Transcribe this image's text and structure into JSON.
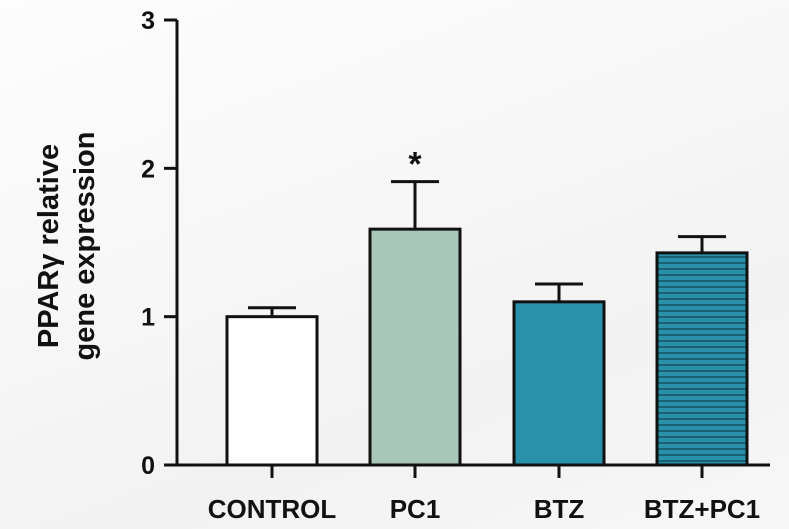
{
  "chart_data": {
    "type": "bar",
    "title": "",
    "xlabel": "",
    "ylabel_lines": [
      "PPARγ relative",
      "gene expression"
    ],
    "ylim": [
      0,
      3
    ],
    "yticks": [
      0,
      1,
      2,
      3
    ],
    "grid": false,
    "categories": [
      "CONTROL",
      "PC1",
      "BTZ",
      "BTZ+PC1"
    ],
    "values": [
      1.0,
      1.59,
      1.1,
      1.43
    ],
    "errors": [
      0.06,
      0.32,
      0.12,
      0.11
    ],
    "bar_colors": [
      "#ffffff",
      "#a7c7b8",
      "#2a91aa",
      "#2a91aa"
    ],
    "bar_patterns": [
      "none",
      "none",
      "none",
      "horizontal-lines"
    ],
    "annotations": [
      {
        "category": "PC1",
        "text": "*"
      }
    ]
  }
}
